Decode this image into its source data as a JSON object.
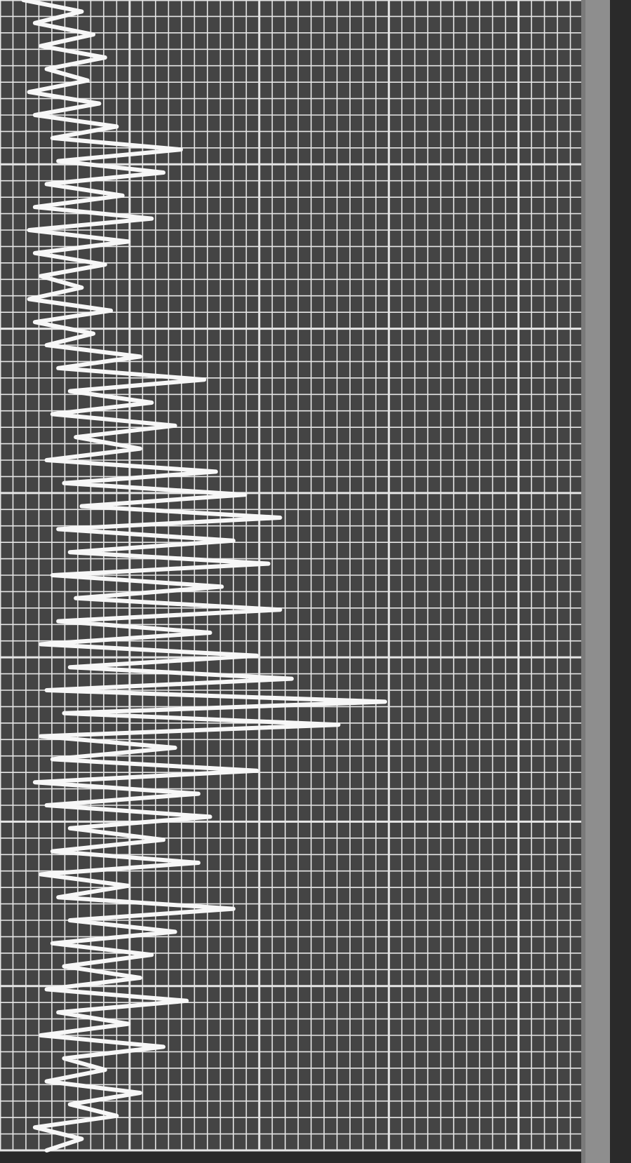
{
  "colors": {
    "paper": "#444444",
    "grid": "#e6e6e6",
    "trace": "#f7f7f7",
    "edge": "#7a7a7a",
    "margin": "#8e8e8e",
    "outside": "#2a2a2a"
  },
  "chart_data": {
    "type": "line",
    "orientation": "vertical-strip",
    "title": "",
    "xlabel": "",
    "ylabel": "",
    "xlim": [
      0,
      100
    ],
    "ylim": [
      0,
      100
    ],
    "grid": true,
    "grid_minor_x_divisions": 45,
    "grid_minor_y_divisions": 70,
    "grid_major_x_every": 10,
    "grid_major_y_every": 10,
    "series": [
      {
        "values": [
          [
            4,
            0
          ],
          [
            14,
            1
          ],
          [
            6,
            2
          ],
          [
            16,
            3
          ],
          [
            7,
            4
          ],
          [
            18,
            5
          ],
          [
            8,
            6
          ],
          [
            15,
            7
          ],
          [
            5,
            8
          ],
          [
            17,
            9
          ],
          [
            6,
            10
          ],
          [
            20,
            11
          ],
          [
            9,
            12
          ],
          [
            31,
            13
          ],
          [
            10,
            14
          ],
          [
            28,
            15
          ],
          [
            8,
            16
          ],
          [
            21,
            17
          ],
          [
            6,
            18
          ],
          [
            26,
            19
          ],
          [
            5,
            20
          ],
          [
            22,
            21
          ],
          [
            6,
            22
          ],
          [
            18,
            23
          ],
          [
            7,
            24
          ],
          [
            14,
            25
          ],
          [
            5,
            26
          ],
          [
            19,
            27
          ],
          [
            6,
            28
          ],
          [
            16,
            29
          ],
          [
            8,
            30
          ],
          [
            24,
            31
          ],
          [
            10,
            32
          ],
          [
            35,
            33
          ],
          [
            12,
            34
          ],
          [
            26,
            35
          ],
          [
            9,
            36
          ],
          [
            30,
            37
          ],
          [
            13,
            38
          ],
          [
            24,
            39
          ],
          [
            8,
            40
          ],
          [
            37,
            41
          ],
          [
            11,
            42
          ],
          [
            42,
            43
          ],
          [
            14,
            44
          ],
          [
            48,
            45
          ],
          [
            10,
            46
          ],
          [
            40,
            47
          ],
          [
            12,
            48
          ],
          [
            46,
            49
          ],
          [
            9,
            50
          ],
          [
            38,
            51
          ],
          [
            13,
            52
          ],
          [
            48,
            53
          ],
          [
            10,
            54
          ],
          [
            36,
            55
          ],
          [
            7,
            56
          ],
          [
            44,
            57
          ],
          [
            12,
            58
          ],
          [
            50,
            59
          ],
          [
            8,
            60
          ],
          [
            66,
            61
          ],
          [
            11,
            62
          ],
          [
            58,
            63
          ],
          [
            7,
            64
          ],
          [
            30,
            65
          ],
          [
            9,
            66
          ],
          [
            44,
            67
          ],
          [
            6,
            68
          ],
          [
            34,
            69
          ],
          [
            8,
            70
          ],
          [
            36,
            71
          ],
          [
            12,
            72
          ],
          [
            28,
            73
          ],
          [
            9,
            74
          ],
          [
            34,
            75
          ],
          [
            7,
            76
          ],
          [
            22,
            77
          ],
          [
            10,
            78
          ],
          [
            40,
            79
          ],
          [
            12,
            80
          ],
          [
            30,
            81
          ],
          [
            9,
            82
          ],
          [
            26,
            83
          ],
          [
            11,
            84
          ],
          [
            24,
            85
          ],
          [
            8,
            86
          ],
          [
            32,
            87
          ],
          [
            10,
            88
          ],
          [
            22,
            89
          ],
          [
            7,
            90
          ],
          [
            28,
            91
          ],
          [
            11,
            92
          ],
          [
            18,
            93
          ],
          [
            8,
            94
          ],
          [
            24,
            95
          ],
          [
            12,
            96
          ],
          [
            20,
            97
          ],
          [
            6,
            98
          ],
          [
            14,
            99
          ],
          [
            8,
            100
          ]
        ]
      }
    ]
  }
}
